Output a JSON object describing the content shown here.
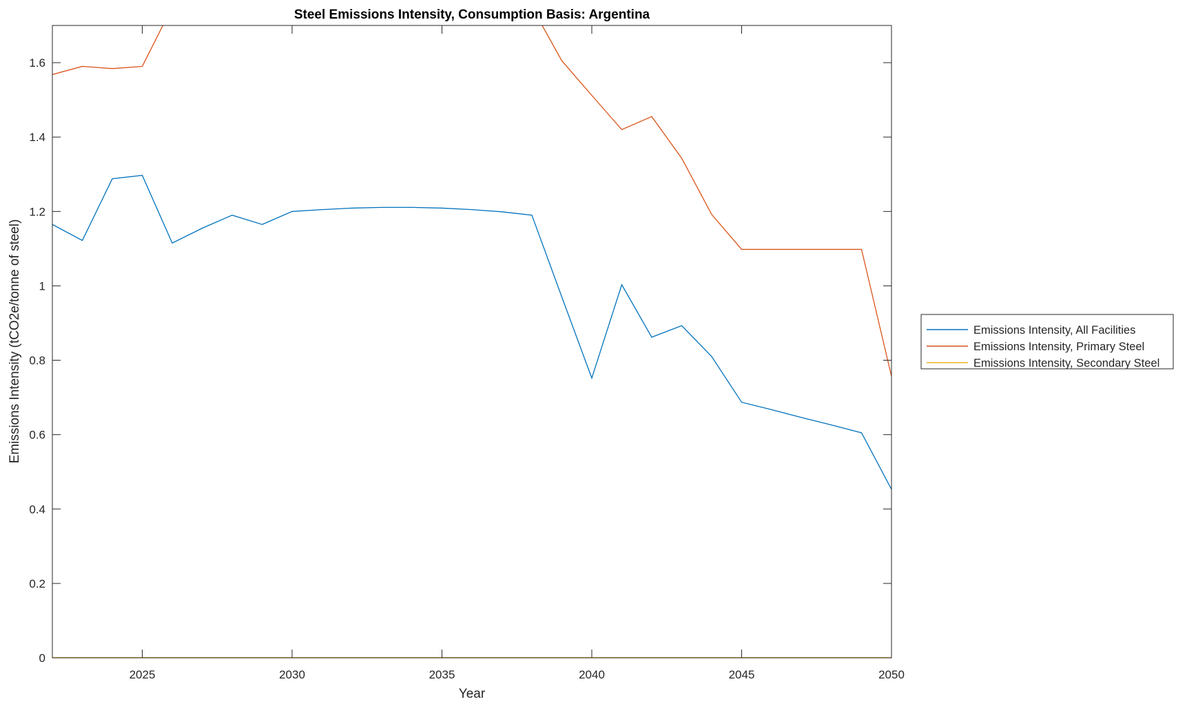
{
  "chart_data": {
    "type": "line",
    "title": "Steel Emissions Intensity, Consumption Basis: Argentina",
    "xlabel": "Year",
    "ylabel": "Emissions Intensity (tCO2e/tonne of steel)",
    "xlim": [
      2022,
      2050
    ],
    "ylim": [
      0,
      1.7
    ],
    "xticks": [
      2025,
      2030,
      2035,
      2040,
      2045,
      2050
    ],
    "yticks": [
      0,
      0.2,
      0.4,
      0.6,
      0.8,
      1,
      1.2,
      1.4,
      1.6
    ],
    "ytick_labels": [
      "0",
      "0.2",
      "0.4",
      "0.6",
      "0.8",
      "1",
      "1.2",
      "1.4",
      "1.6"
    ],
    "grid": false,
    "legend_position": "outside-right",
    "x": [
      2022,
      2023,
      2024,
      2025,
      2026,
      2027,
      2028,
      2029,
      2030,
      2031,
      2032,
      2033,
      2034,
      2035,
      2036,
      2037,
      2038,
      2039,
      2040,
      2041,
      2042,
      2043,
      2044,
      2045,
      2046,
      2047,
      2048,
      2049,
      2050
    ],
    "series": [
      {
        "name": "Emissions Intensity, All Facilities",
        "color": "#0072BD",
        "values": [
          1.165,
          1.122,
          1.288,
          1.297,
          1.115,
          1.155,
          1.19,
          1.165,
          1.2,
          1.205,
          1.209,
          1.211,
          1.211,
          1.209,
          1.205,
          1.199,
          1.19,
          0.97,
          0.752,
          1.003,
          0.862,
          0.893,
          0.81,
          0.687,
          0.667,
          0.646,
          0.626,
          0.605,
          0.453
        ]
      },
      {
        "name": "Emissions Intensity, Primary Steel",
        "color": "#D95319",
        "values": [
          1.568,
          1.59,
          1.584,
          1.59,
          1.75,
          1.75,
          1.75,
          1.75,
          1.75,
          1.75,
          1.75,
          1.75,
          1.75,
          1.75,
          1.75,
          1.75,
          1.75,
          1.605,
          1.512,
          1.42,
          1.455,
          1.343,
          1.192,
          1.098,
          1.098,
          1.098,
          1.098,
          1.098,
          0.757
        ]
      },
      {
        "name": "Emissions Intensity, Secondary Steel",
        "color": "#EDB120",
        "values": [
          0,
          0,
          0,
          0,
          0,
          0,
          0,
          0,
          0,
          0,
          0,
          0,
          0,
          0,
          0,
          0,
          0,
          0,
          0,
          0,
          0,
          0,
          0,
          0,
          0,
          0,
          0,
          0,
          0
        ]
      }
    ]
  }
}
